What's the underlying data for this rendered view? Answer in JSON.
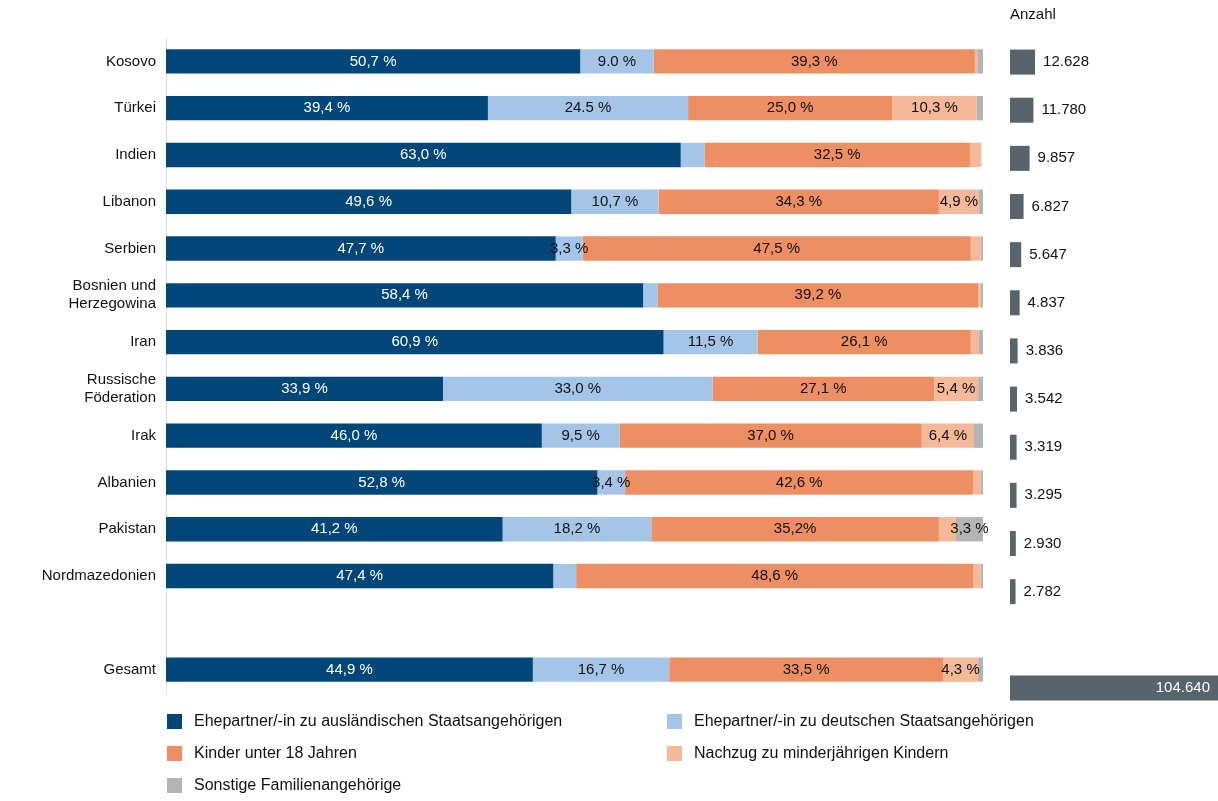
{
  "chart_data": [
    {
      "type": "bar",
      "orientation": "horizontal",
      "stacked": true,
      "legend": "bottom",
      "tick_labels": "y",
      "xlim": [
        0,
        100
      ],
      "categories": [
        "Kosovo",
        "Türkei",
        "Indien",
        "Libanon",
        "Serbien",
        "Bosnien und Herzegowina",
        "Iran",
        "Russische Föderation",
        "Irak",
        "Albanien",
        "Pakistan",
        "Nordmazedonien",
        null,
        "Gesamt"
      ],
      "series": [
        {
          "name": "Ehepartner/-in zu ausländischen Staatsangehörigen",
          "color": "#004678",
          "values": [
            50.7,
            39.4,
            63.0,
            49.6,
            47.7,
            58.4,
            60.9,
            33.9,
            46.0,
            52.8,
            41.2,
            47.4,
            null,
            44.9
          ],
          "value_labels": [
            "50,7 %",
            "39,4 %",
            "63,0 %",
            "49,6 %",
            "47,7 %",
            "58,4 %",
            "60,9 %",
            "33,9 %",
            "46,0 %",
            "52,8 %",
            "41,2 %",
            "47,4 %",
            null,
            "44,9 %"
          ]
        },
        {
          "name": "Ehepartner/-in zu deutschen Staatsangehörigen",
          "color": "#a5c5e8",
          "values": [
            9.0,
            24.5,
            2.9,
            10.7,
            3.3,
            1.8,
            11.5,
            33.0,
            9.5,
            3.4,
            18.2,
            2.8,
            null,
            16.7
          ],
          "value_labels": [
            "9.0 %",
            "24.5 %",
            null,
            "10,7 %",
            "3,3 %",
            null,
            "11,5 %",
            "33,0 %",
            "9,5 %",
            "3,4 %",
            "18,2 %",
            null,
            null,
            "16,7 %"
          ]
        },
        {
          "name": "Kinder unter 18 Jahren",
          "color": "#ee8e63",
          "values": [
            39.3,
            25.0,
            32.5,
            34.3,
            47.5,
            39.2,
            26.1,
            27.1,
            37.0,
            42.6,
            35.2,
            48.6,
            null,
            33.5
          ],
          "value_labels": [
            "39,3 %",
            "25,0 %",
            "32,5 %",
            "34,3 %",
            "47,5 %",
            "39,2 %",
            "26,1 %",
            "27,1 %",
            "37,0 %",
            "42,6 %",
            "35,2%",
            "48,6 %",
            null,
            "33,5 %"
          ]
        },
        {
          "name": "Nachzug zu minderjährigen Kindern",
          "color": "#f5b898",
          "values": [
            0.3,
            10.3,
            1.4,
            4.9,
            1.2,
            0.3,
            1.0,
            5.4,
            6.4,
            0.9,
            2.1,
            0.9,
            null,
            4.3
          ],
          "value_labels": [
            null,
            "10,3 %",
            null,
            "4,9 %",
            null,
            null,
            null,
            "5,4 %",
            "6,4 %",
            null,
            null,
            null,
            null,
            "4,3 %"
          ]
        },
        {
          "name": "Sonstige Familienangehörige",
          "color": "#b4b4b4",
          "values": [
            0.7,
            0.8,
            null,
            0.5,
            0.3,
            0.3,
            0.5,
            0.6,
            1.1,
            0.3,
            3.3,
            0.3,
            null,
            0.6
          ],
          "value_labels": [
            null,
            null,
            null,
            null,
            null,
            null,
            null,
            null,
            null,
            null,
            "3,3 %",
            null,
            null,
            null
          ]
        }
      ]
    },
    {
      "type": "bar",
      "orientation": "horizontal",
      "title": "Anzahl",
      "tick_labels": false,
      "series": [
        {
          "color": "#58646c",
          "values": [
            12628,
            11780,
            9857,
            6827,
            5647,
            4837,
            3836,
            3542,
            3319,
            3295,
            2930,
            2782,
            null,
            104640
          ],
          "value_labels": [
            "12.628",
            "11.780",
            "9.857",
            "6.827",
            "5.647",
            "4.837",
            "3.836",
            "3.542",
            "3.319",
            "3.295",
            "2.930",
            "2.782",
            null,
            "104.640"
          ]
        }
      ]
    }
  ]
}
